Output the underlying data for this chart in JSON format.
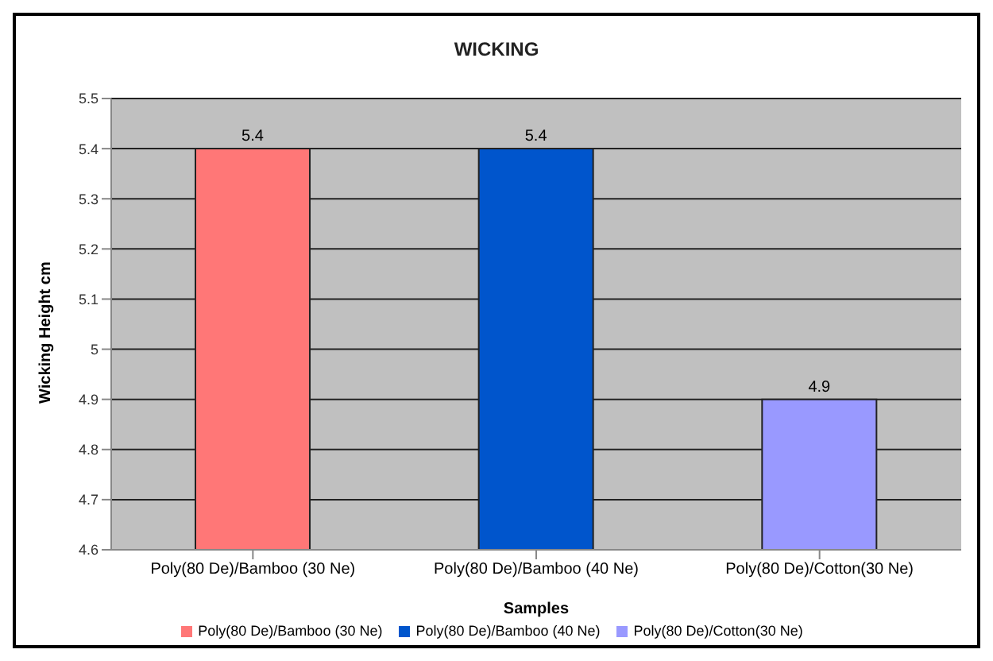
{
  "chart_data": {
    "type": "bar",
    "title": "WICKING",
    "xlabel": "Samples",
    "ylabel": "Wicking Height cm",
    "categories": [
      "Poly(80 De)/Bamboo (30 Ne)",
      "Poly(80 De)/Bamboo (40 Ne)",
      "Poly(80 De)/Cotton(30 Ne)"
    ],
    "series": [
      {
        "name": "Poly(80 De)/Bamboo (30 Ne)",
        "color": "#ff7777",
        "values": [
          5.4,
          null,
          null
        ]
      },
      {
        "name": "Poly(80 De)/Bamboo (40 Ne)",
        "color": "#0055cc",
        "values": [
          null,
          5.4,
          null
        ]
      },
      {
        "name": "Poly(80 De)/Cotton(30 Ne)",
        "color": "#9999ff",
        "values": [
          null,
          null,
          4.9
        ]
      }
    ],
    "stacked": true,
    "ylim": [
      4.6,
      5.5
    ],
    "yticks": [
      4.6,
      4.7,
      4.8,
      4.9,
      5,
      5.1,
      5.2,
      5.3,
      5.4,
      5.5
    ],
    "grid": "y",
    "legend": "bottom",
    "data_labels": true
  }
}
